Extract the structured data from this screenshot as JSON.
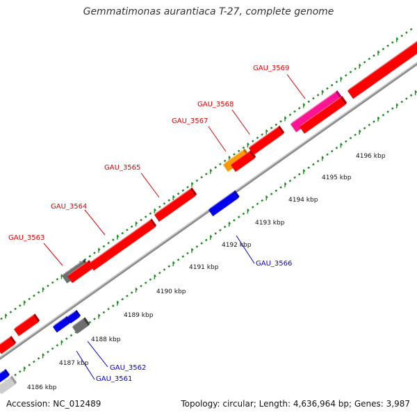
{
  "title": "Gemmatimonas aurantiaca T-27, complete genome",
  "footer": {
    "accession": "Accession: NC_012489",
    "summary": "Topology: circular; Length: 4,636,964 bp; Genes: 3,987"
  },
  "colors": {
    "forward_gene": "#ff0000",
    "reverse_gene": "#0000ff",
    "gray_gene": "#6e6e6e",
    "pink_gene": "#ff1493",
    "orange_gene": "#ff9900",
    "light_gene": "#cccccc",
    "backbone": "#888888",
    "ticks": "#1e8c1e",
    "forward_label": "#dd0000",
    "reverse_label": "#0000cc",
    "tick_label": "#111111"
  },
  "ticks": [
    "4186 kbp",
    "4187 kbp",
    "4188 kbp",
    "4189 kbp",
    "4190 kbp",
    "4191 kbp",
    "4192 kbp",
    "4193 kbp",
    "4194 kbp",
    "4195 kbp",
    "4196 kbp"
  ],
  "forward_labels": [
    "GAU_3563",
    "GAU_3564",
    "GAU_3565",
    "GAU_3567",
    "GAU_3568",
    "GAU_3569"
  ],
  "reverse_labels": [
    "GAU_3561",
    "GAU_3562",
    "GAU_3566"
  ],
  "genes": {
    "forward": [
      "red",
      "red",
      "gray",
      "red",
      "red",
      "red",
      "orange",
      "red",
      "red",
      "pink",
      "red"
    ],
    "reverse": [
      "light",
      "blue",
      "blue",
      "blue",
      "gray",
      "blue"
    ]
  }
}
